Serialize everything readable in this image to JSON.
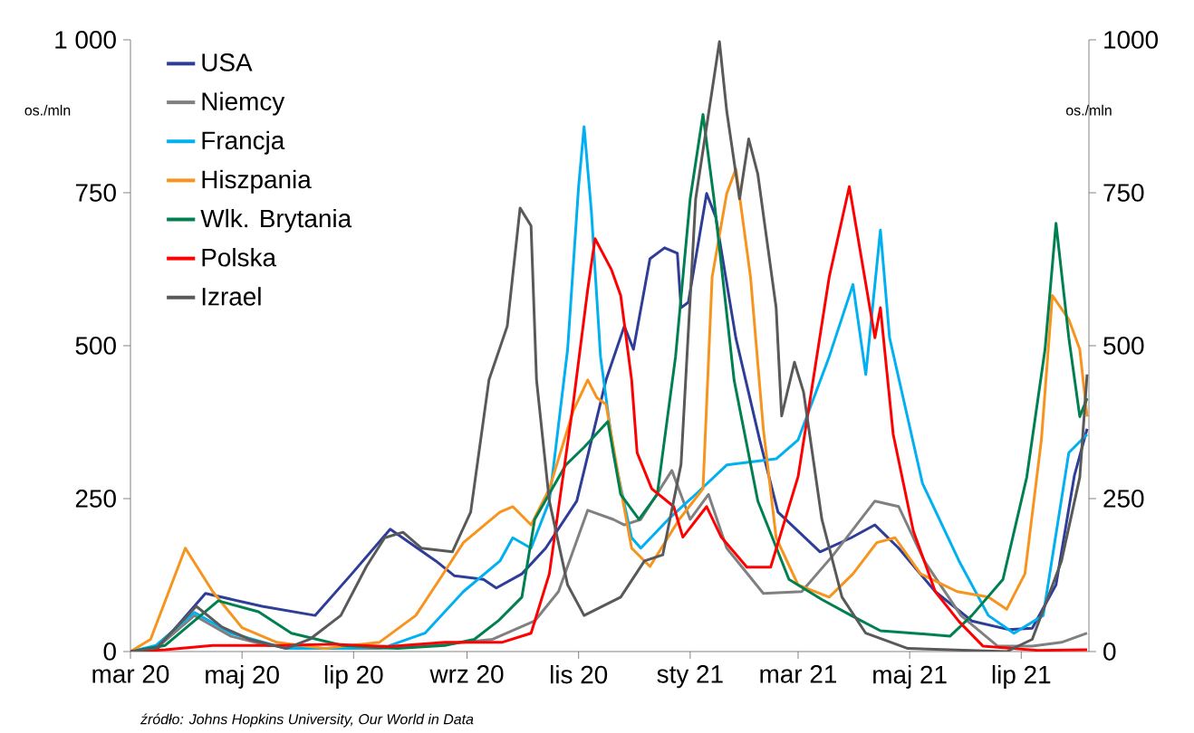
{
  "chart_data": {
    "type": "line",
    "ylabel": "os./mln",
    "y2label": "os./mln",
    "annotations": [
      "źródło: Johns Hopkins University, Our World in Data"
    ],
    "xlim": [
      "2020-03-01",
      "2021-08-07"
    ],
    "xticks": [
      {
        "value": "2020-03-01",
        "label": "mar 20"
      },
      {
        "value": "2020-05-01",
        "label": "maj 20"
      },
      {
        "value": "2020-07-01",
        "label": "lip 20"
      },
      {
        "value": "2020-09-01",
        "label": "wrz 20"
      },
      {
        "value": "2020-11-01",
        "label": "lis 20"
      },
      {
        "value": "2021-01-01",
        "label": "sty 21"
      },
      {
        "value": "2021-03-01",
        "label": "mar 21"
      },
      {
        "value": "2021-05-01",
        "label": "maj 21"
      },
      {
        "value": "2021-07-01",
        "label": "lip 21"
      }
    ],
    "ylim": [
      0,
      1000
    ],
    "yticks": [
      0,
      250,
      500,
      750,
      {
        "value": 1000,
        "label": "1 000"
      }
    ],
    "y2lim": [
      0,
      1000
    ],
    "y2ticks": [
      0,
      250,
      500,
      750,
      1000
    ],
    "legend": "top left",
    "marker": "none",
    "line_style": "solid",
    "series": [
      {
        "name": "USA",
        "color": "#2e3d98",
        "x": [
          "2020-03-01",
          "2020-03-15",
          "2020-04-11",
          "2020-05-12",
          "2020-06-10",
          "2020-06-30",
          "2020-07-21",
          "2020-08-15",
          "2020-08-25",
          "2020-09-10",
          "2020-09-17",
          "2020-10-01",
          "2020-10-14",
          "2020-10-31",
          "2020-11-16",
          "2020-11-26",
          "2020-12-01",
          "2020-12-10",
          "2020-12-18",
          "2020-12-25",
          "2020-12-27",
          "2020-12-31",
          "2021-01-10",
          "2021-01-15",
          "2021-01-26",
          "2021-02-08",
          "2021-02-18",
          "2021-03-13",
          "2021-03-30",
          "2021-04-12",
          "2021-04-25",
          "2021-05-15",
          "2021-06-04",
          "2021-06-24",
          "2021-07-07",
          "2021-07-20",
          "2021-07-30",
          "2021-08-06"
        ],
        "values": [
          0,
          2,
          95,
          74,
          59,
          127,
          200,
          148,
          124,
          118,
          104,
          127,
          169,
          246,
          444,
          532,
          494,
          642,
          660,
          651,
          562,
          571,
          749,
          710,
          512,
          346,
          228,
          163,
          186,
          207,
          169,
          98,
          50,
          36,
          38,
          109,
          287,
          364
        ]
      },
      {
        "name": "Niemcy",
        "color": "#808080",
        "x": [
          "2020-03-01",
          "2020-03-15",
          "2020-04-05",
          "2020-04-25",
          "2020-05-15",
          "2020-06-15",
          "2020-07-15",
          "2020-08-15",
          "2020-09-15",
          "2020-10-08",
          "2020-10-21",
          "2020-11-06",
          "2020-11-20",
          "2020-11-26",
          "2020-12-05",
          "2020-12-22",
          "2021-01-01",
          "2021-01-11",
          "2021-01-21",
          "2021-02-10",
          "2021-03-03",
          "2021-03-20",
          "2021-04-12",
          "2021-04-25",
          "2021-05-09",
          "2021-05-29",
          "2021-06-18",
          "2021-07-07",
          "2021-07-23",
          "2021-08-06"
        ],
        "values": [
          0,
          5,
          59,
          25,
          10,
          5,
          5,
          10,
          20,
          50,
          98,
          231,
          216,
          207,
          216,
          296,
          216,
          257,
          169,
          95,
          98,
          157,
          246,
          237,
          148,
          59,
          9,
          9,
          15,
          30
        ]
      },
      {
        "name": "Francja",
        "color": "#00b0f0",
        "x": [
          "2020-03-01",
          "2020-03-15",
          "2020-04-05",
          "2020-04-25",
          "2020-05-25",
          "2020-06-25",
          "2020-07-20",
          "2020-08-09",
          "2020-08-30",
          "2020-09-19",
          "2020-09-26",
          "2020-10-06",
          "2020-10-16",
          "2020-10-26",
          "2020-11-01",
          "2020-11-04",
          "2020-11-08",
          "2020-11-13",
          "2020-11-20",
          "2020-11-30",
          "2020-12-05",
          "2020-12-20",
          "2021-01-04",
          "2021-01-21",
          "2021-02-03",
          "2021-02-17",
          "2021-03-01",
          "2021-03-18",
          "2021-03-31",
          "2021-04-07",
          "2021-04-15",
          "2021-04-20",
          "2021-05-08",
          "2021-05-28",
          "2021-06-13",
          "2021-06-27",
          "2021-07-13",
          "2021-07-27",
          "2021-08-06"
        ],
        "values": [
          0,
          10,
          64,
          30,
          5,
          5,
          9,
          30,
          98,
          148,
          186,
          169,
          246,
          494,
          760,
          858,
          719,
          482,
          325,
          186,
          169,
          216,
          257,
          305,
          310,
          315,
          346,
          482,
          600,
          453,
          689,
          513,
          275,
          148,
          59,
          30,
          59,
          325,
          355
        ]
      },
      {
        "name": "Hiszpania",
        "color": "#f7941d",
        "x": [
          "2020-03-01",
          "2020-03-12",
          "2020-03-31",
          "2020-04-15",
          "2020-05-01",
          "2020-05-20",
          "2020-06-15",
          "2020-07-15",
          "2020-08-04",
          "2020-08-17",
          "2020-08-30",
          "2020-09-19",
          "2020-09-26",
          "2020-10-06",
          "2020-10-16",
          "2020-10-29",
          "2020-11-06",
          "2020-11-11",
          "2020-11-16",
          "2020-11-24",
          "2020-11-30",
          "2020-12-10",
          "2020-12-26",
          "2021-01-08",
          "2021-01-13",
          "2021-01-21",
          "2021-01-26",
          "2021-02-03",
          "2021-02-10",
          "2021-02-17",
          "2021-03-01",
          "2021-03-18",
          "2021-03-31",
          "2021-04-13",
          "2021-04-23",
          "2021-05-07",
          "2021-05-27",
          "2021-06-13",
          "2021-06-23",
          "2021-07-03",
          "2021-07-12",
          "2021-07-18",
          "2021-07-27",
          "2021-08-02",
          "2021-08-06"
        ],
        "values": [
          0,
          20,
          169,
          98,
          39,
          15,
          5,
          15,
          59,
          118,
          178,
          228,
          237,
          207,
          266,
          393,
          444,
          415,
          404,
          266,
          169,
          139,
          216,
          266,
          612,
          749,
          789,
          612,
          364,
          186,
          109,
          89,
          127,
          178,
          186,
          127,
          98,
          89,
          69,
          127,
          346,
          582,
          543,
          494,
          384
        ]
      },
      {
        "name": "Wlk. Brytania",
        "color": "#008050",
        "x": [
          "2020-03-01",
          "2020-03-20",
          "2020-04-18",
          "2020-05-10",
          "2020-05-28",
          "2020-06-25",
          "2020-07-25",
          "2020-08-20",
          "2020-09-05",
          "2020-09-18",
          "2020-10-01",
          "2020-10-08",
          "2020-10-25",
          "2020-11-04",
          "2020-11-17",
          "2020-11-24",
          "2020-12-04",
          "2020-12-14",
          "2020-12-24",
          "2021-01-01",
          "2021-01-08",
          "2021-01-14",
          "2021-01-25",
          "2021-02-07",
          "2021-02-24",
          "2021-03-14",
          "2021-03-30",
          "2021-04-15",
          "2021-05-03",
          "2021-05-23",
          "2021-06-04",
          "2021-06-21",
          "2021-07-04",
          "2021-07-14",
          "2021-07-20",
          "2021-07-27",
          "2021-08-02",
          "2021-08-06"
        ],
        "values": [
          0,
          10,
          83,
          65,
          30,
          10,
          5,
          10,
          20,
          50,
          89,
          216,
          305,
          334,
          376,
          257,
          216,
          257,
          482,
          740,
          878,
          740,
          444,
          246,
          118,
          85,
          59,
          34,
          30,
          25,
          59,
          118,
          285,
          494,
          700,
          513,
          384,
          414
        ]
      },
      {
        "name": "Polska",
        "color": "#ff0000",
        "x": [
          "2020-03-01",
          "2020-03-20",
          "2020-04-15",
          "2020-05-20",
          "2020-06-20",
          "2020-07-20",
          "2020-08-20",
          "2020-09-20",
          "2020-10-06",
          "2020-10-16",
          "2020-10-29",
          "2020-11-06",
          "2020-11-10",
          "2020-11-19",
          "2020-11-24",
          "2020-11-30",
          "2020-12-03",
          "2020-12-11",
          "2020-12-23",
          "2020-12-28",
          "2021-01-10",
          "2021-01-18",
          "2021-02-01",
          "2021-02-14",
          "2021-03-01",
          "2021-03-18",
          "2021-03-29",
          "2021-04-12",
          "2021-04-15",
          "2021-04-22",
          "2021-05-03",
          "2021-05-15",
          "2021-05-28",
          "2021-06-10",
          "2021-07-10",
          "2021-08-06"
        ],
        "values": [
          0,
          3,
          10,
          10,
          12,
          8,
          15,
          15,
          30,
          127,
          404,
          592,
          675,
          624,
          582,
          444,
          325,
          266,
          237,
          187,
          237,
          187,
          138,
          138,
          286,
          612,
          760,
          513,
          562,
          355,
          197,
          98,
          49,
          9,
          2,
          3
        ]
      },
      {
        "name": "Izrael",
        "color": "#595959",
        "x": [
          "2020-03-01",
          "2020-03-15",
          "2020-04-06",
          "2020-04-20",
          "2020-05-05",
          "2020-05-25",
          "2020-06-07",
          "2020-06-24",
          "2020-07-08",
          "2020-07-18",
          "2020-07-28",
          "2020-08-07",
          "2020-08-24",
          "2020-09-03",
          "2020-09-13",
          "2020-09-23",
          "2020-09-30",
          "2020-10-06",
          "2020-10-09",
          "2020-10-16",
          "2020-10-26",
          "2020-11-04",
          "2020-11-24",
          "2020-12-07",
          "2020-12-17",
          "2020-12-27",
          "2021-01-04",
          "2021-01-17",
          "2021-01-21",
          "2021-01-28",
          "2021-02-02",
          "2021-02-07",
          "2021-02-17",
          "2021-02-20",
          "2021-02-27",
          "2021-03-04",
          "2021-03-14",
          "2021-03-25",
          "2021-04-07",
          "2021-04-30",
          "2021-06-23",
          "2021-07-07",
          "2021-07-23",
          "2021-08-02",
          "2021-08-06"
        ],
        "values": [
          0,
          5,
          74,
          40,
          20,
          5,
          20,
          59,
          139,
          186,
          195,
          169,
          163,
          228,
          444,
          532,
          725,
          696,
          444,
          246,
          109,
          59,
          89,
          148,
          158,
          306,
          740,
          997,
          883,
          740,
          838,
          780,
          562,
          385,
          473,
          424,
          216,
          89,
          30,
          5,
          0,
          20,
          148,
          285,
          453
        ]
      }
    ]
  }
}
